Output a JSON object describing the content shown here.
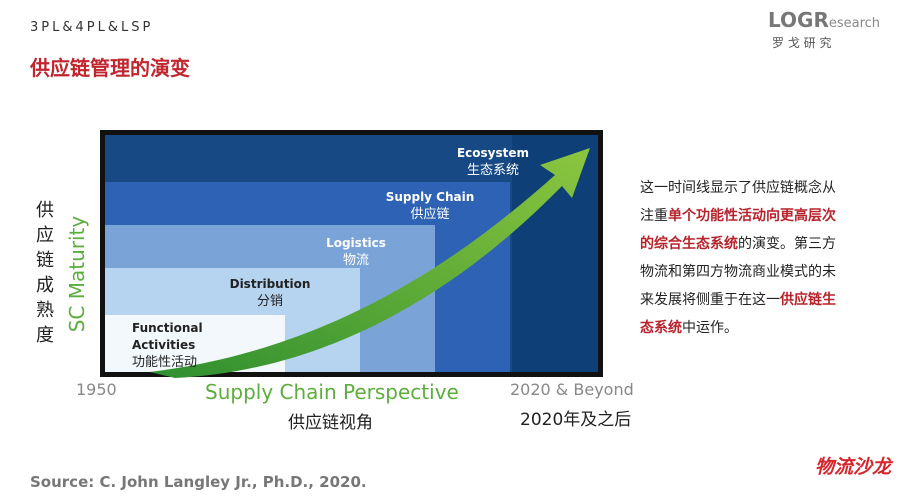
{
  "header": {
    "section": "3PL&4PL&LSP",
    "title": "供应链管理的演变"
  },
  "logo": {
    "mark": "LOGR",
    "suffix": "esearch",
    "name": "罗 戈 研 究"
  },
  "diagram": {
    "y_label": "SC Maturity",
    "y_label_cn": "供应链成熟度",
    "x_start": "1950",
    "x_label": "Supply Chain Perspective",
    "x_label_cn": "供应链视角",
    "x_end": "2020 & Beyond",
    "x_end_cn": "2020年及之后",
    "stages": [
      {
        "label": "Functional Activities",
        "label_cn": "功能性活动"
      },
      {
        "label": "Distribution",
        "label_cn": "分销"
      },
      {
        "label": "Logistics",
        "label_cn": "物流"
      },
      {
        "label": "Supply Chain",
        "label_cn": "供应链"
      },
      {
        "label": "Ecosystem",
        "label_cn": "生态系统"
      }
    ]
  },
  "description": {
    "segments": [
      {
        "text": "这一时间线显示了供应链概念从注重",
        "highlight": false
      },
      {
        "text": "单个功能性活动向更高层次的综合生态系统",
        "highlight": true
      },
      {
        "text": "的演变。第三方物流和第四方物流商业模式的未来发展将侧重于在这一",
        "highlight": false
      },
      {
        "text": "供应链生态系统",
        "highlight": true
      },
      {
        "text": "中运作。",
        "highlight": false
      }
    ]
  },
  "source": "Source:  C. John Langley Jr., Ph.D., 2020.",
  "watermark": "物流沙龙"
}
